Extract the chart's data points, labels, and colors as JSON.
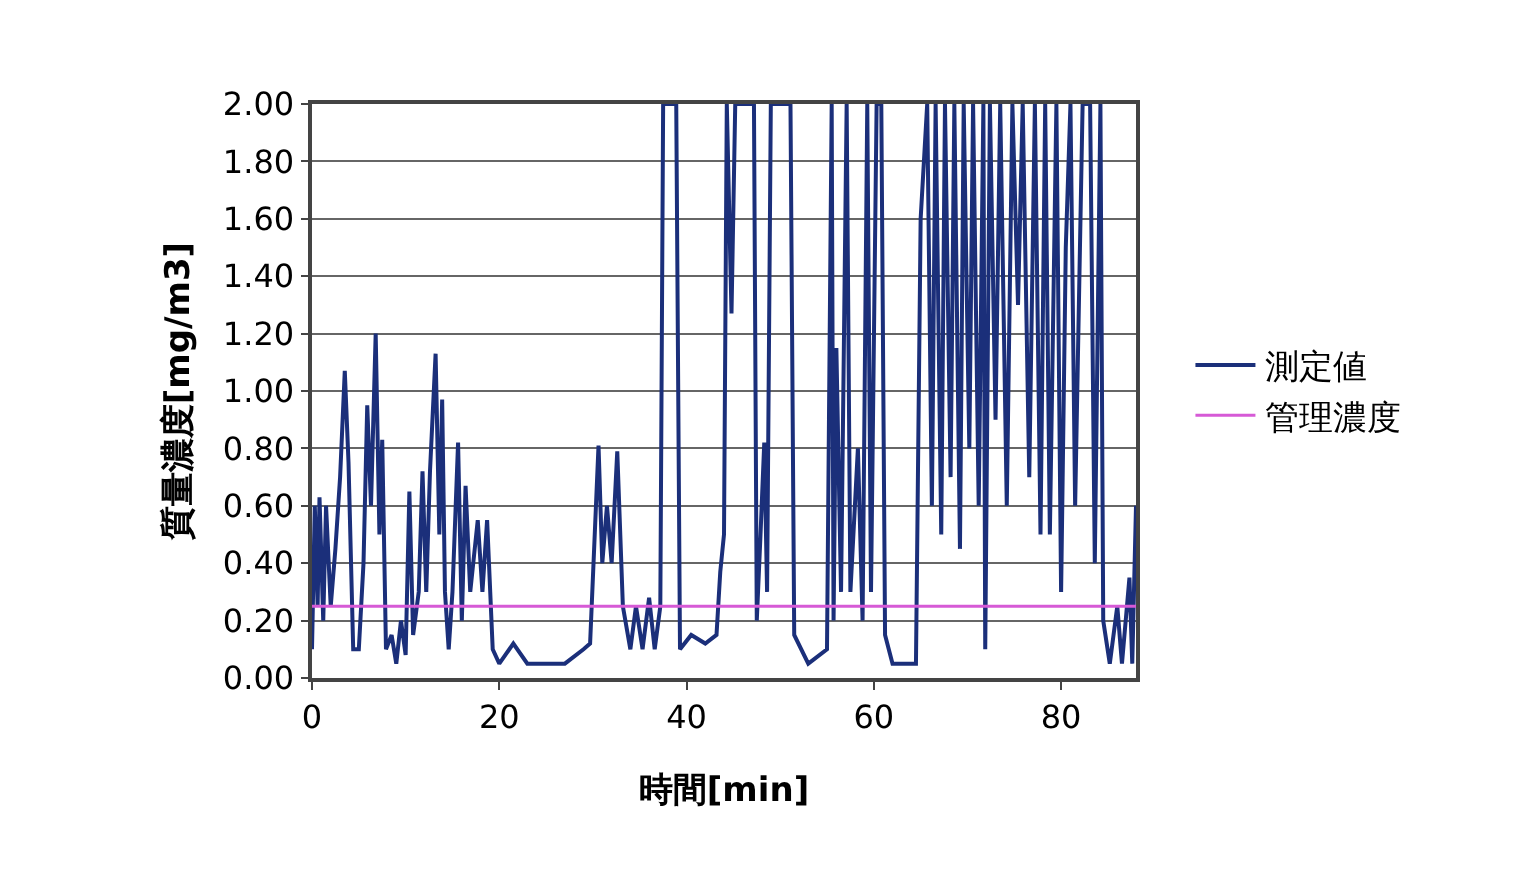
{
  "chart_data": {
    "type": "line",
    "xlabel": "時間[min]",
    "ylabel": "質量濃度[mg/m3]",
    "xlim": [
      0,
      88
    ],
    "xticks": [
      0,
      20,
      40,
      60,
      80
    ],
    "ylim": [
      0,
      2
    ],
    "yticks": [
      {
        "value": 0,
        "label": "0.00"
      },
      {
        "value": 0.2,
        "label": "0.20"
      },
      {
        "value": 0.4,
        "label": "0.40"
      },
      {
        "value": 0.6,
        "label": "0.60"
      },
      {
        "value": 0.8,
        "label": "0.80"
      },
      {
        "value": 1,
        "label": "1.00"
      },
      {
        "value": 1.2,
        "label": "1.20"
      },
      {
        "value": 1.4,
        "label": "1.40"
      },
      {
        "value": 1.6,
        "label": "1.60"
      },
      {
        "value": 1.8,
        "label": "1.80"
      },
      {
        "value": 2,
        "label": "2.00"
      }
    ],
    "grid": "y",
    "legend": "right",
    "marker": "none",
    "line_style": "solid",
    "x": [
      0,
      0.3,
      0.6,
      0.8,
      1.2,
      1.5,
      2.0,
      2.5,
      3.0,
      3.5,
      3.9,
      4.4,
      5.0,
      5.5,
      5.9,
      6.3,
      6.8,
      7.2,
      7.5,
      7.9,
      8.5,
      9.0,
      9.5,
      10.0,
      10.4,
      10.8,
      11.4,
      11.8,
      12.2,
      12.6,
      13.2,
      13.6,
      13.9,
      14.2,
      14.6,
      15.0,
      15.6,
      16.0,
      16.4,
      16.9,
      17.7,
      18.2,
      18.7,
      19.3,
      20,
      21.5,
      23,
      25,
      27,
      29,
      29.7,
      30.6,
      31.0,
      31.5,
      32.0,
      32.6,
      33.2,
      34,
      34.6,
      35.3,
      36,
      36.6,
      37.2,
      37.5,
      38.9,
      39.3,
      40.5,
      42,
      43.2,
      43.6,
      44.0,
      44.3,
      44.8,
      45.2,
      47.2,
      47.5,
      47.9,
      48.3,
      48.6,
      49.0,
      51.1,
      51.5,
      53,
      55,
      55.5,
      55.7,
      56.0,
      56.5,
      57.1,
      57.5,
      58.3,
      58.8,
      59.3,
      59.7,
      60.3,
      60.8,
      61.2,
      62,
      64.5,
      65.0,
      65.7,
      66.2,
      66.6,
      67.2,
      67.6,
      68.2,
      68.6,
      69.2,
      69.6,
      70.2,
      70.6,
      71.2,
      71.7,
      71.9,
      72.4,
      73.0,
      73.5,
      74.2,
      74.8,
      75.4,
      75.9,
      76.6,
      77.2,
      77.8,
      78.3,
      78.8,
      79.5,
      80.0,
      80.5,
      81.0,
      81.5,
      82.3,
      83.1,
      83.6,
      84.2,
      84.5,
      85.2,
      86,
      86.5,
      87.3,
      87.6,
      88
    ],
    "series": [
      {
        "name": "測定値",
        "color": "#1b2f7a",
        "values": [
          0.1,
          0.6,
          0.25,
          0.63,
          0.2,
          0.6,
          0.25,
          0.45,
          0.7,
          1.07,
          0.75,
          0.1,
          0.1,
          0.4,
          0.95,
          0.6,
          1.2,
          0.5,
          0.83,
          0.1,
          0.15,
          0.05,
          0.2,
          0.08,
          0.65,
          0.15,
          0.3,
          0.72,
          0.3,
          0.72,
          1.13,
          0.5,
          0.97,
          0.3,
          0.1,
          0.3,
          0.82,
          0.2,
          0.67,
          0.3,
          0.55,
          0.3,
          0.55,
          0.1,
          0.05,
          0.12,
          0.05,
          0.05,
          0.05,
          0.1,
          0.12,
          0.81,
          0.4,
          0.6,
          0.4,
          0.79,
          0.25,
          0.1,
          0.25,
          0.1,
          0.28,
          0.1,
          0.25,
          2.0,
          2.0,
          0.1,
          0.15,
          0.12,
          0.15,
          0.37,
          0.5,
          2.0,
          1.27,
          2.0,
          2.0,
          0.2,
          0.5,
          0.82,
          0.3,
          2.0,
          2.0,
          0.15,
          0.05,
          0.1,
          2.0,
          0.2,
          1.15,
          0.3,
          2.0,
          0.3,
          0.8,
          0.2,
          2.0,
          0.3,
          2.0,
          2.0,
          0.15,
          0.05,
          0.05,
          1.6,
          2.0,
          0.6,
          2.0,
          0.5,
          2.0,
          0.7,
          2.0,
          0.45,
          2.0,
          0.8,
          2.0,
          0.6,
          2.0,
          0.1,
          2.0,
          0.9,
          2.0,
          0.6,
          2.0,
          1.3,
          2.0,
          0.7,
          2.0,
          0.5,
          2.0,
          0.5,
          2.0,
          0.3,
          1.5,
          2.0,
          0.6,
          2.0,
          2.0,
          0.4,
          2.0,
          0.2,
          0.05,
          0.25,
          0.05,
          0.35,
          0.05,
          0.6
        ]
      }
    ],
    "ref_lines": [
      {
        "axis": "y",
        "value": 0.25,
        "label": "管理濃度",
        "color": "#d65ad6"
      }
    ]
  }
}
